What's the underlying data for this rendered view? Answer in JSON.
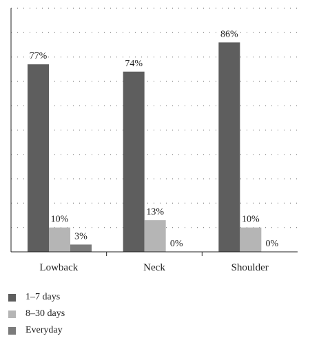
{
  "chart_data": {
    "type": "bar",
    "categories": [
      "Lowback",
      "Neck",
      "Shoulder"
    ],
    "series": [
      {
        "name": "1–7 days",
        "values": [
          77,
          74,
          86
        ],
        "labels": [
          "77%",
          "74%",
          "86%"
        ],
        "color": "#5e5e5e"
      },
      {
        "name": "8–30 days",
        "values": [
          10,
          13,
          10
        ],
        "labels": [
          "10%",
          "13%",
          "10%"
        ],
        "color": "#b5b5b5"
      },
      {
        "name": "Everyday",
        "values": [
          3,
          0,
          0
        ],
        "labels": [
          "3%",
          "0%",
          "0%"
        ],
        "color": "#7b7b7b"
      }
    ],
    "title": "",
    "xlabel": "",
    "ylabel": "",
    "ylim": [
      0,
      100
    ],
    "grid": true,
    "legend_position": "bottom-left"
  }
}
